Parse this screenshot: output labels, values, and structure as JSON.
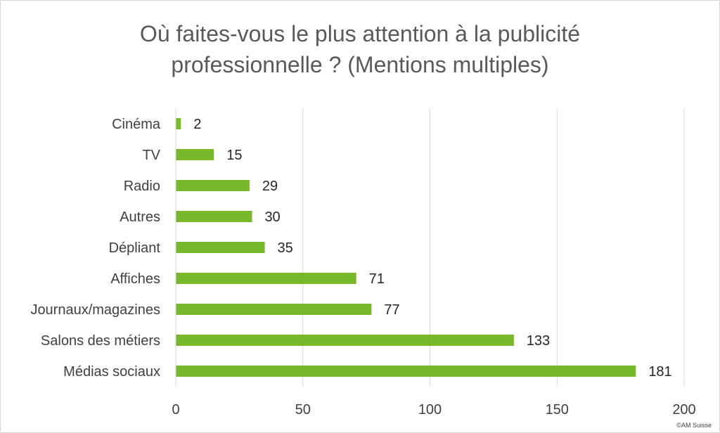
{
  "chart_data": {
    "type": "bar",
    "orientation": "horizontal",
    "title_line1": "Où faites-vous le plus attention à la publicité",
    "title_line2": "professionnelle ? (Mentions multiples)",
    "categories": [
      "Cinéma",
      "TV",
      "Radio",
      "Autres",
      "Dépliant",
      "Affiches",
      "Journaux/magazines",
      "Salons des métiers",
      "Médias sociaux"
    ],
    "values": [
      2,
      15,
      29,
      30,
      35,
      71,
      77,
      133,
      181
    ],
    "xlim": [
      0,
      200
    ],
    "xticks": [
      0,
      50,
      100,
      150,
      200
    ],
    "grid": "vertical",
    "data_labels": true,
    "bar_color": "#76b82a"
  },
  "credit": "©AM Suisse"
}
